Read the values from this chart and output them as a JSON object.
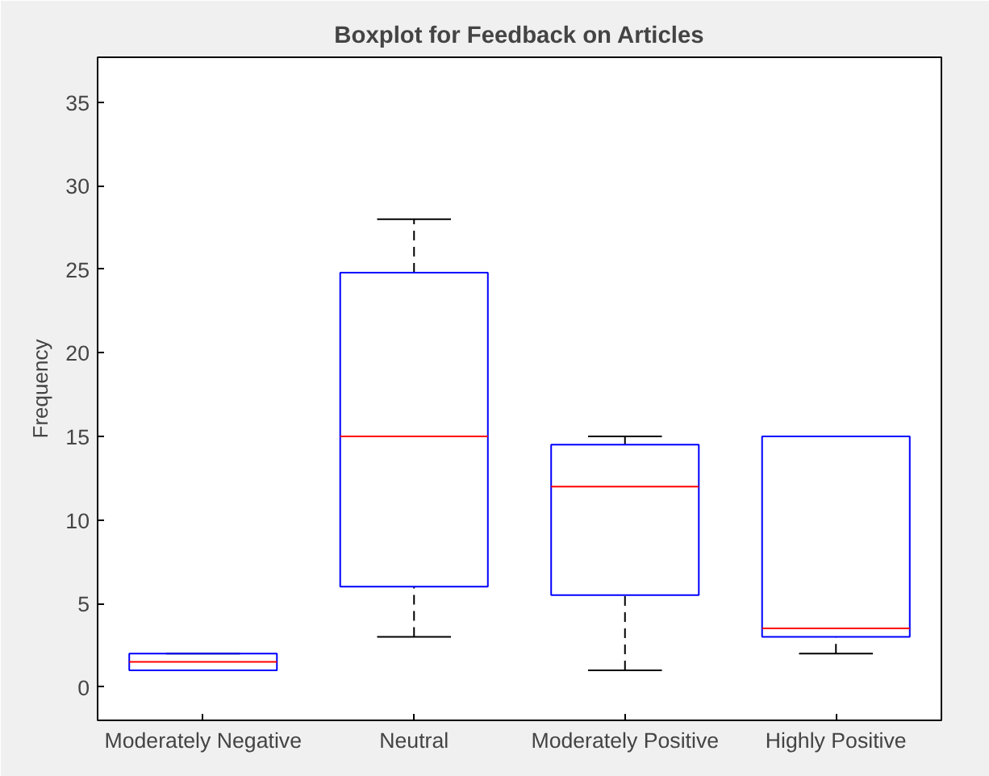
{
  "chart_data": {
    "type": "box",
    "title": "Boxplot for Feedback on Articles",
    "ylabel": "Frequency",
    "categories": [
      "Moderately Negative",
      "Neutral",
      "Moderately Positive",
      "Highly Positive"
    ],
    "series": [
      {
        "color": "#0000ff",
        "boxes": [
          {
            "low": 1,
            "q1": 1,
            "median": 1.5,
            "q3": 2,
            "high": 2
          },
          {
            "low": 3,
            "q1": 6,
            "median": 15,
            "q3": 24.8,
            "high": 28
          },
          {
            "low": 1,
            "q1": 5.5,
            "median": 12,
            "q3": 14.5,
            "high": 15
          },
          {
            "low": 2,
            "q1": 3,
            "median": 3.5,
            "q3": 15,
            "high": 15
          }
        ]
      }
    ],
    "ylim": [
      -2,
      37.7
    ],
    "yticks": [
      0,
      5,
      10,
      15,
      20,
      25,
      30,
      35
    ],
    "grid": false
  }
}
